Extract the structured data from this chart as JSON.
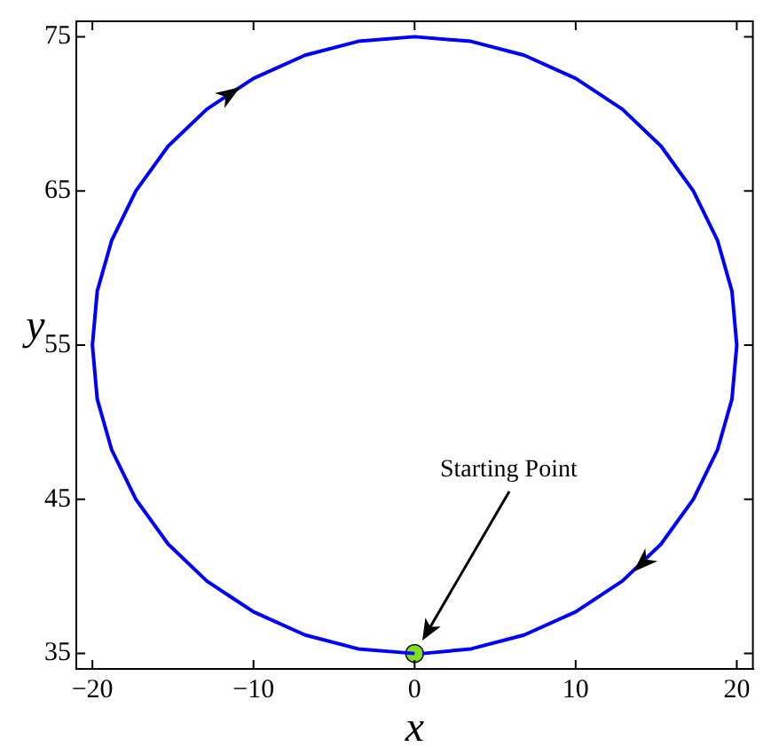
{
  "chart_data": {
    "type": "line",
    "xlabel": "x",
    "ylabel": "y",
    "xlim": [
      -21,
      21
    ],
    "ylim": [
      34,
      76
    ],
    "xticks": [
      -20,
      -10,
      0,
      10,
      20
    ],
    "yticks": [
      35,
      45,
      55,
      65,
      75
    ],
    "grid": false,
    "marker": "none",
    "line_style": "solid",
    "annotations": [
      "Starting Point"
    ],
    "series": [
      {
        "color": "#0000ff",
        "x": [
          0,
          -3.5,
          -6.8,
          -10,
          -12.9,
          -15.3,
          -17.3,
          -18.8,
          -19.7,
          -20,
          -19.7,
          -18.8,
          -17.3,
          -15.3,
          -12.9,
          -10,
          -6.8,
          -3.5,
          0,
          3.5,
          6.8,
          10,
          12.9,
          15.3,
          17.3,
          18.8,
          19.7,
          20,
          19.7,
          18.8,
          17.3,
          15.3,
          12.9,
          10,
          6.8,
          3.5,
          0.5
        ],
        "values": [
          35,
          35.3,
          36.2,
          37.7,
          39.7,
          42.1,
          45,
          48.2,
          51.5,
          55,
          58.5,
          61.8,
          65,
          67.9,
          70.3,
          72.3,
          73.8,
          74.7,
          75,
          74.7,
          73.8,
          72.3,
          70.3,
          67.9,
          65,
          61.8,
          58.5,
          55,
          51.5,
          48.2,
          45,
          42.1,
          39.7,
          37.7,
          36.2,
          35.3,
          35
        ]
      },
      {
        "type": "scatter",
        "color": "#80e020",
        "marker": "circle",
        "x": [
          0
        ],
        "values": [
          35
        ]
      }
    ]
  }
}
